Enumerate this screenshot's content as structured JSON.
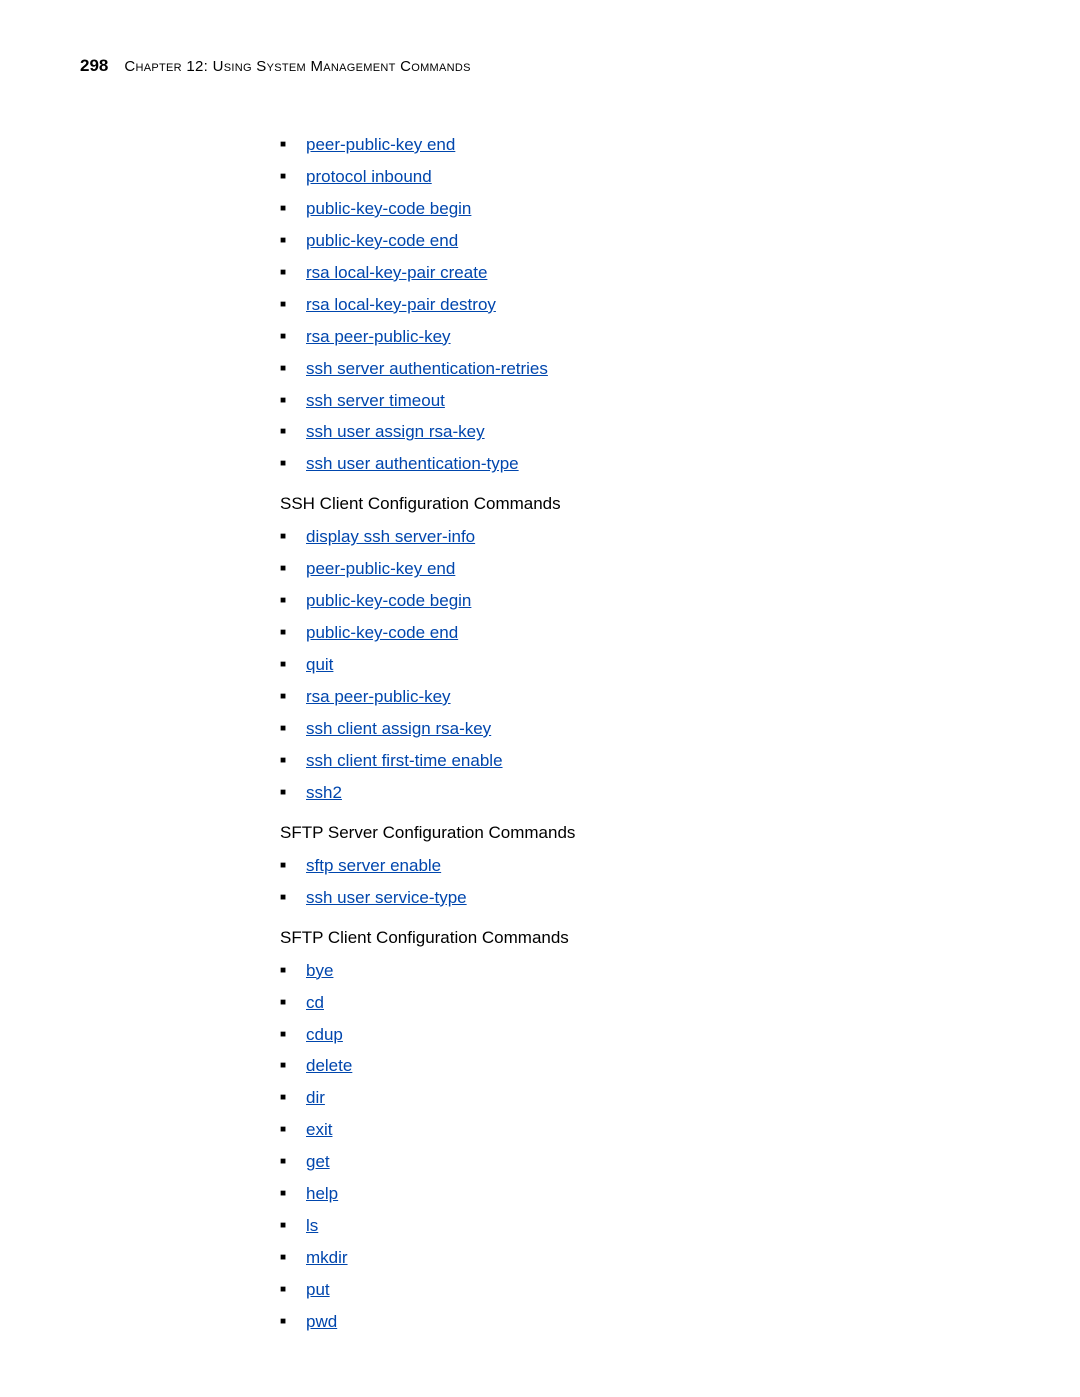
{
  "header": {
    "page_number": "298",
    "chapter_title": "Chapter 12: Using System Management Commands"
  },
  "colors": {
    "link": "#0046ad",
    "text": "#000000",
    "background": "#ffffff"
  },
  "sections": [
    {
      "heading": null,
      "items": [
        "peer-public-key end",
        "protocol inbound",
        "public-key-code begin",
        "public-key-code end",
        "rsa local-key-pair create",
        "rsa local-key-pair destroy",
        "rsa peer-public-key",
        "ssh server authentication-retries",
        "ssh server timeout",
        "ssh user assign rsa-key",
        "ssh user authentication-type"
      ]
    },
    {
      "heading": "SSH Client Configuration Commands",
      "items": [
        "display ssh server-info",
        "peer-public-key end",
        "public-key-code begin",
        "public-key-code end",
        "quit",
        "rsa peer-public-key",
        "ssh client assign rsa-key",
        "ssh client first-time enable",
        "ssh2"
      ]
    },
    {
      "heading": "SFTP Server Configuration Commands",
      "items": [
        "sftp server enable",
        "ssh user service-type"
      ]
    },
    {
      "heading": "SFTP Client Configuration Commands",
      "items": [
        "bye",
        "cd",
        "cdup",
        "delete",
        "dir",
        "exit",
        "get",
        "help",
        "ls",
        "mkdir",
        "put",
        "pwd"
      ]
    }
  ]
}
